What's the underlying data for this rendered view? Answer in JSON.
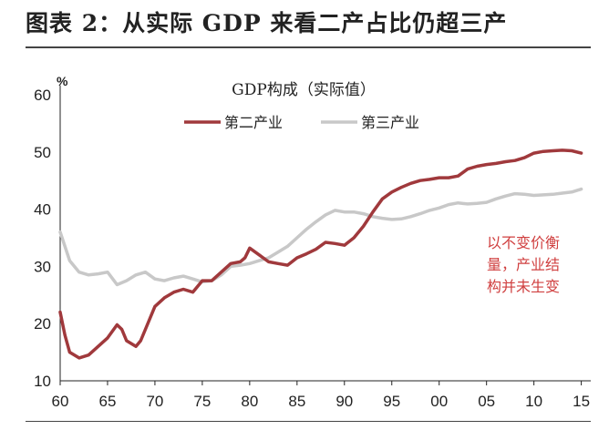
{
  "figure_title": "图表 2：从实际 GDP 来看二产占比仍超三产",
  "chart_data": {
    "type": "line",
    "title": "GDP构成（实际值）",
    "ylabel": "%",
    "xlabel": "",
    "ylim": [
      10,
      60
    ],
    "yticks": [
      "10",
      "20",
      "30",
      "40",
      "50",
      "60"
    ],
    "xlim": [
      1960,
      2016
    ],
    "xticks": [
      {
        "year": 1960,
        "label": "60"
      },
      {
        "year": 1965,
        "label": "65"
      },
      {
        "year": 1970,
        "label": "70"
      },
      {
        "year": 1975,
        "label": "75"
      },
      {
        "year": 1980,
        "label": "80"
      },
      {
        "year": 1985,
        "label": "85"
      },
      {
        "year": 1990,
        "label": "90"
      },
      {
        "year": 1995,
        "label": "95"
      },
      {
        "year": 2000,
        "label": "00"
      },
      {
        "year": 2005,
        "label": "05"
      },
      {
        "year": 2010,
        "label": "10"
      },
      {
        "year": 2015,
        "label": "15"
      }
    ],
    "legend_position": "top",
    "grid": false,
    "annotation": [
      "以不变价衡",
      "量，产业结",
      "构并未生变"
    ],
    "series": [
      {
        "name": "第二产业",
        "color": "#a0393c",
        "points": [
          [
            1960,
            22
          ],
          [
            1960.5,
            18
          ],
          [
            1961,
            15
          ],
          [
            1962,
            14
          ],
          [
            1963,
            14.5
          ],
          [
            1964,
            16
          ],
          [
            1965,
            17.5
          ],
          [
            1966,
            19.8
          ],
          [
            1966.5,
            19
          ],
          [
            1967,
            17
          ],
          [
            1968,
            16
          ],
          [
            1968.5,
            17
          ],
          [
            1969,
            19
          ],
          [
            1970,
            23
          ],
          [
            1971,
            24.5
          ],
          [
            1972,
            25.5
          ],
          [
            1973,
            26
          ],
          [
            1974,
            25.5
          ],
          [
            1975,
            27.5
          ],
          [
            1976,
            27.5
          ],
          [
            1977,
            29
          ],
          [
            1978,
            30.5
          ],
          [
            1979,
            30.8
          ],
          [
            1979.5,
            31.5
          ],
          [
            1980,
            33.2
          ],
          [
            1981,
            32
          ],
          [
            1982,
            30.8
          ],
          [
            1983,
            30.5
          ],
          [
            1984,
            30.2
          ],
          [
            1985,
            31.5
          ],
          [
            1986,
            32.2
          ],
          [
            1987,
            33
          ],
          [
            1988,
            34.2
          ],
          [
            1989,
            34
          ],
          [
            1990,
            33.7
          ],
          [
            1991,
            35
          ],
          [
            1992,
            37
          ],
          [
            1993,
            39.5
          ],
          [
            1994,
            41.8
          ],
          [
            1995,
            43
          ],
          [
            1996,
            43.8
          ],
          [
            1997,
            44.5
          ],
          [
            1998,
            45
          ],
          [
            1999,
            45.2
          ],
          [
            2000,
            45.5
          ],
          [
            2001,
            45.5
          ],
          [
            2002,
            45.8
          ],
          [
            2003,
            47
          ],
          [
            2004,
            47.5
          ],
          [
            2005,
            47.8
          ],
          [
            2006,
            48
          ],
          [
            2007,
            48.3
          ],
          [
            2008,
            48.5
          ],
          [
            2009,
            49
          ],
          [
            2010,
            49.8
          ],
          [
            2011,
            50.1
          ],
          [
            2012,
            50.2
          ],
          [
            2013,
            50.3
          ],
          [
            2014,
            50.2
          ],
          [
            2015,
            49.8
          ]
        ]
      },
      {
        "name": "第三产业",
        "color": "#c8c8c8",
        "points": [
          [
            1960,
            36
          ],
          [
            1961,
            31
          ],
          [
            1962,
            29
          ],
          [
            1963,
            28.5
          ],
          [
            1964,
            28.7
          ],
          [
            1965,
            29
          ],
          [
            1966,
            26.8
          ],
          [
            1967,
            27.5
          ],
          [
            1968,
            28.5
          ],
          [
            1969,
            29
          ],
          [
            1970,
            27.8
          ],
          [
            1971,
            27.5
          ],
          [
            1972,
            28
          ],
          [
            1973,
            28.3
          ],
          [
            1974,
            27.8
          ],
          [
            1975,
            27.3
          ],
          [
            1976,
            27.5
          ],
          [
            1977,
            28.5
          ],
          [
            1978,
            30
          ],
          [
            1979,
            30.2
          ],
          [
            1980,
            30.5
          ],
          [
            1981,
            31
          ],
          [
            1982,
            31.5
          ],
          [
            1983,
            32.5
          ],
          [
            1984,
            33.5
          ],
          [
            1985,
            35
          ],
          [
            1986,
            36.5
          ],
          [
            1987,
            37.8
          ],
          [
            1988,
            39
          ],
          [
            1989,
            39.8
          ],
          [
            1990,
            39.5
          ],
          [
            1991,
            39.5
          ],
          [
            1992,
            39.2
          ],
          [
            1993,
            38.7
          ],
          [
            1994,
            38.4
          ],
          [
            1995,
            38.2
          ],
          [
            1996,
            38.3
          ],
          [
            1997,
            38.7
          ],
          [
            1998,
            39.2
          ],
          [
            1999,
            39.8
          ],
          [
            2000,
            40.2
          ],
          [
            2001,
            40.8
          ],
          [
            2002,
            41.1
          ],
          [
            2003,
            40.9
          ],
          [
            2004,
            41
          ],
          [
            2005,
            41.2
          ],
          [
            2006,
            41.8
          ],
          [
            2007,
            42.3
          ],
          [
            2008,
            42.7
          ],
          [
            2009,
            42.6
          ],
          [
            2010,
            42.4
          ],
          [
            2011,
            42.5
          ],
          [
            2012,
            42.6
          ],
          [
            2013,
            42.8
          ],
          [
            2014,
            43
          ],
          [
            2015,
            43.5
          ]
        ]
      }
    ]
  }
}
